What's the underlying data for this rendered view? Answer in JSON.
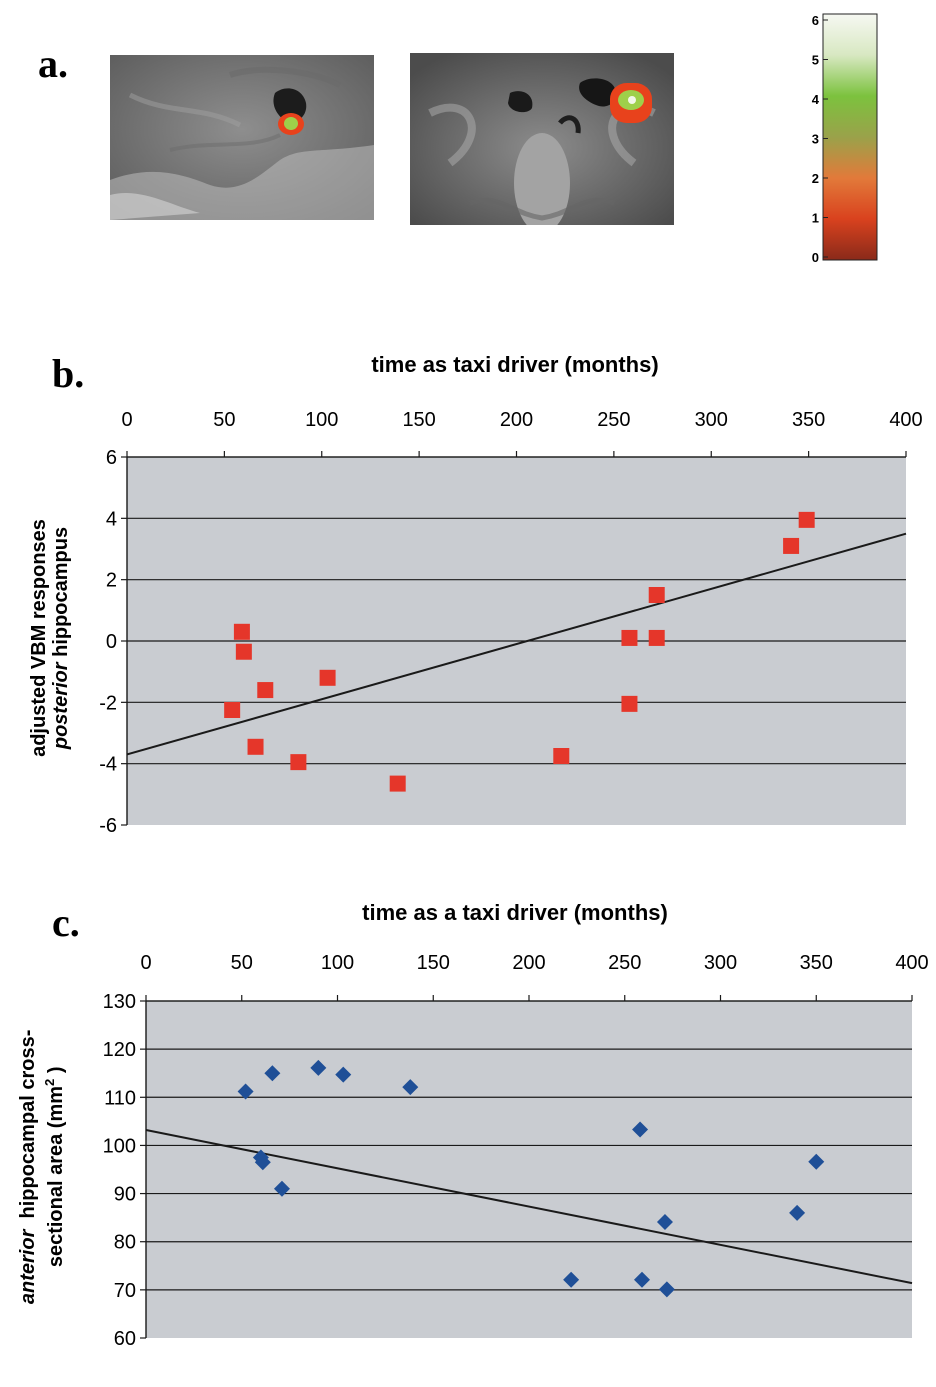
{
  "panel_a": {
    "label": "a.",
    "colorbar": {
      "ticks": [
        "0",
        "1",
        "2",
        "3",
        "4",
        "5",
        "6"
      ],
      "colors": [
        "#8a2a1a",
        "#d9421e",
        "#e27a3a",
        "#9aa24a",
        "#7cc23e",
        "#d8e8c2",
        "#f6f8f2"
      ]
    },
    "highlight_colors": {
      "outer": "#e8421c",
      "inner": "#9ed04a"
    }
  },
  "panel_b": {
    "label": "b.",
    "ylabel_line1": "adjusted VBM responses",
    "ylabel_line2_italic": "posterior",
    "ylabel_line2_rest": " hippocampus"
  },
  "panel_c": {
    "label": "c.",
    "ylabel_line1_italic": "anterior",
    "ylabel_line1_rest": "  hippocampal cross-",
    "ylabel_line2": "sectional area (mm",
    "ylabel_sup": "2",
    "ylabel_close": " )"
  },
  "chart_data": [
    {
      "type": "scatter",
      "title": "time as taxi driver (months)",
      "xlabel": "time as taxi driver (months)",
      "ylabel": "adjusted VBM responses posterior hippocampus",
      "xlim": [
        0,
        400
      ],
      "ylim": [
        -6,
        6
      ],
      "xticks": [
        "0",
        "50",
        "100",
        "150",
        "200",
        "250",
        "300",
        "350",
        "400"
      ],
      "yticks": [
        "-6",
        "-4",
        "-2",
        "0",
        "2",
        "4",
        "6"
      ],
      "grid": "horizontal",
      "marker": "square",
      "marker_color": "#e5362a",
      "x": [
        54,
        59,
        60,
        66,
        71,
        88,
        103,
        139,
        223,
        258,
        258,
        272,
        272,
        341,
        349
      ],
      "y": [
        -2.25,
        0.3,
        -0.35,
        -3.45,
        -1.6,
        -3.95,
        -1.2,
        -4.65,
        -3.75,
        -2.05,
        0.1,
        1.5,
        0.1,
        3.1,
        3.95
      ],
      "trendline": {
        "x": [
          0,
          400
        ],
        "y": [
          -3.7,
          3.5
        ]
      }
    },
    {
      "type": "scatter",
      "title": "time as a taxi driver (months)",
      "xlabel": "time as a taxi driver (months)",
      "ylabel": "anterior hippocampal cross-sectional area (mm2 )",
      "xlim": [
        0,
        400
      ],
      "ylim": [
        60,
        130
      ],
      "xticks": [
        "0",
        "50",
        "100",
        "150",
        "200",
        "250",
        "300",
        "350",
        "400"
      ],
      "yticks": [
        "60",
        "70",
        "80",
        "90",
        "100",
        "110",
        "120",
        "130"
      ],
      "grid": "horizontal",
      "marker": "diamond",
      "marker_color": "#1f4f97",
      "x": [
        52,
        60,
        61,
        66,
        71,
        90,
        103,
        138,
        222,
        258,
        259,
        271,
        272,
        340,
        350
      ],
      "y": [
        111.2,
        97.5,
        96.5,
        115,
        91,
        116.1,
        114.7,
        112.1,
        72.1,
        103.3,
        72.1,
        84.1,
        70.1,
        86,
        96.6
      ],
      "trendline": {
        "x": [
          0,
          400
        ],
        "y": [
          103.2,
          71.4
        ]
      }
    }
  ]
}
